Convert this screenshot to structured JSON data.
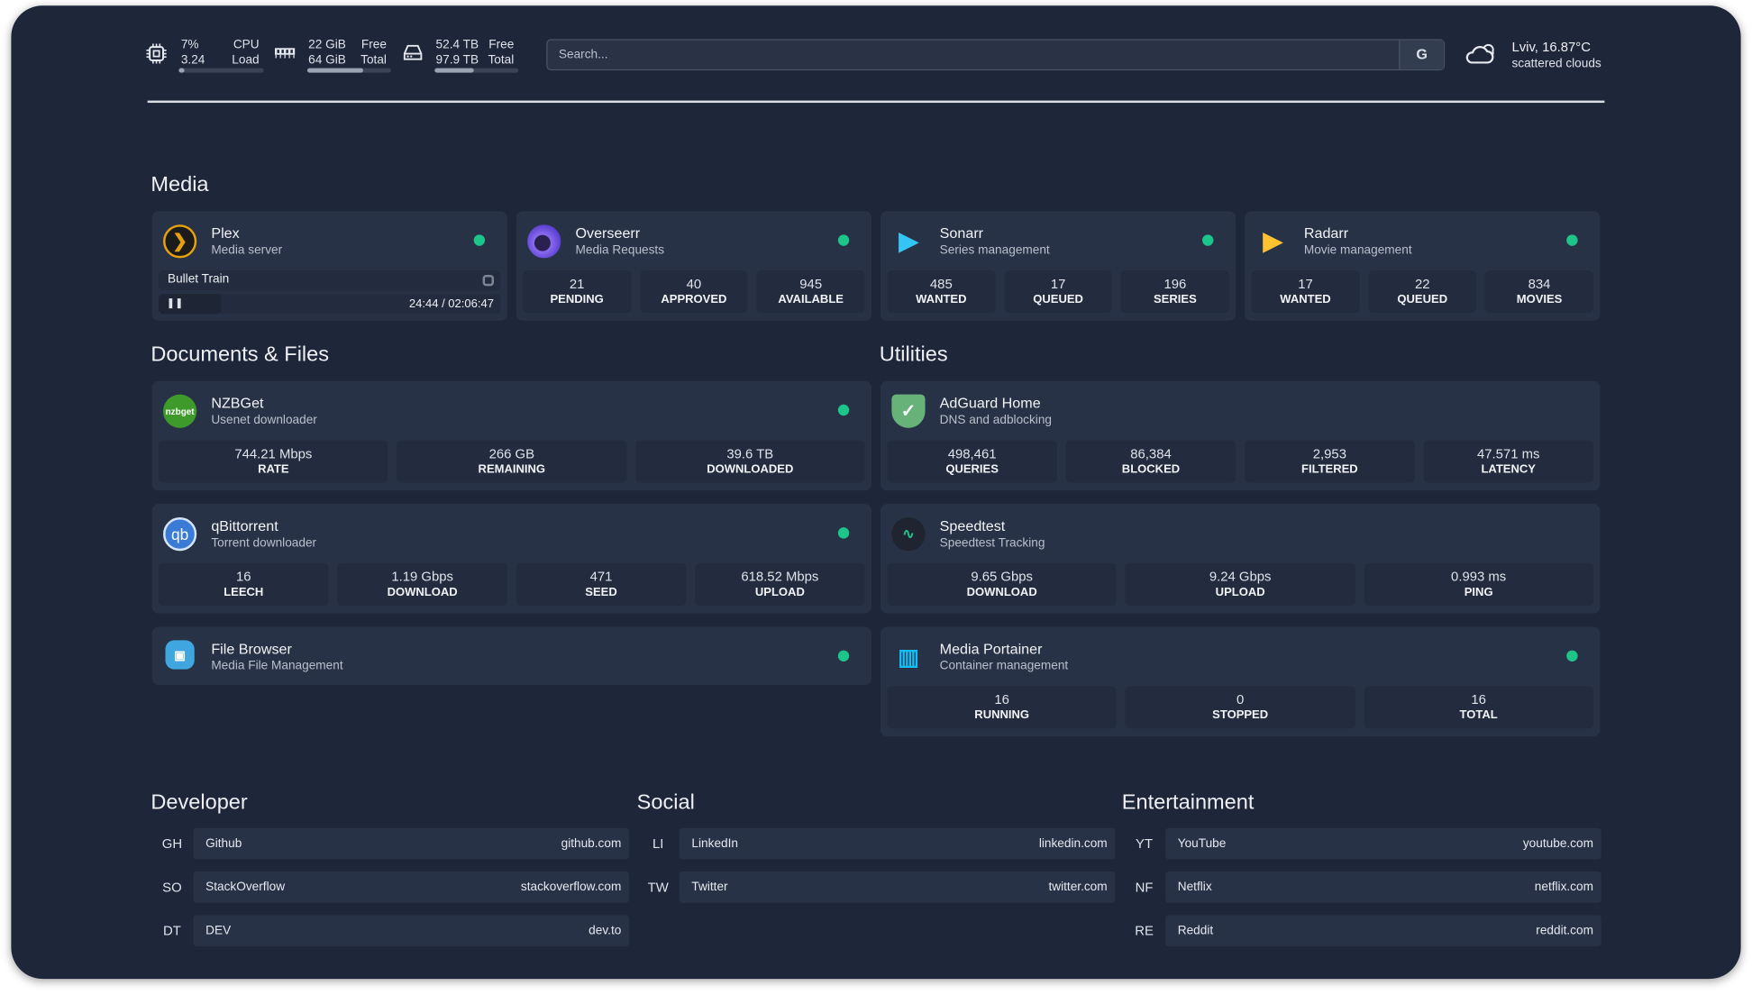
{
  "header": {
    "cpu": {
      "icon": "cpu-icon",
      "value1": "7%",
      "value2": "3.24",
      "label1": "CPU",
      "label2": "Load",
      "percent": 7
    },
    "memory": {
      "icon": "memory-icon",
      "value1": "22 GiB",
      "value2": "64 GiB",
      "label1": "Free",
      "label2": "Total",
      "percent": 66
    },
    "disk": {
      "icon": "disk-icon",
      "value1": "52.4 TB",
      "value2": "97.9 TB",
      "label1": "Free",
      "label2": "Total",
      "percent": 46
    },
    "search": {
      "placeholder": "Search...",
      "button_label": "G"
    },
    "weather": {
      "icon": "cloud-icon",
      "location_temp": "Lviv, 16.87°C",
      "condition": "scattered clouds"
    }
  },
  "colors": {
    "background": "#1e2639",
    "card": "#283246",
    "status_ok": "#1ec58a"
  },
  "sections": {
    "media": "Media",
    "documents": "Documents & Files",
    "utilities": "Utilities",
    "developer": "Developer",
    "social": "Social",
    "entertainment": "Entertainment"
  },
  "media": [
    {
      "name": "Plex",
      "desc": "Media server",
      "icon": "plex-icon",
      "status": "online",
      "now_playing": {
        "title": "Bullet Train",
        "time": "24:44 / 02:06:47",
        "state": "playing"
      }
    },
    {
      "name": "Overseerr",
      "desc": "Media Requests",
      "icon": "overseerr-icon",
      "status": "online",
      "stats": [
        {
          "v": "21",
          "l": "PENDING"
        },
        {
          "v": "40",
          "l": "APPROVED"
        },
        {
          "v": "945",
          "l": "AVAILABLE"
        }
      ]
    },
    {
      "name": "Sonarr",
      "desc": "Series management",
      "icon": "sonarr-icon",
      "status": "online",
      "stats": [
        {
          "v": "485",
          "l": "WANTED"
        },
        {
          "v": "17",
          "l": "QUEUED"
        },
        {
          "v": "196",
          "l": "SERIES"
        }
      ]
    },
    {
      "name": "Radarr",
      "desc": "Movie management",
      "icon": "radarr-icon",
      "status": "online",
      "stats": [
        {
          "v": "17",
          "l": "WANTED"
        },
        {
          "v": "22",
          "l": "QUEUED"
        },
        {
          "v": "834",
          "l": "MOVIES"
        }
      ]
    }
  ],
  "documents": [
    {
      "name": "NZBGet",
      "desc": "Usenet downloader",
      "icon": "nzbget-icon",
      "icon_text": "nzbget",
      "status": "online",
      "stats": [
        {
          "v": "744.21 Mbps",
          "l": "RATE"
        },
        {
          "v": "266 GB",
          "l": "REMAINING"
        },
        {
          "v": "39.6 TB",
          "l": "DOWNLOADED"
        }
      ]
    },
    {
      "name": "qBittorrent",
      "desc": "Torrent downloader",
      "icon": "qbittorrent-icon",
      "icon_text": "qb",
      "status": "online",
      "stats": [
        {
          "v": "16",
          "l": "LEECH"
        },
        {
          "v": "1.19 Gbps",
          "l": "DOWNLOAD"
        },
        {
          "v": "471",
          "l": "SEED"
        },
        {
          "v": "618.52 Mbps",
          "l": "UPLOAD"
        }
      ]
    },
    {
      "name": "File Browser",
      "desc": "Media File Management",
      "icon": "filebrowser-icon",
      "status": "online"
    }
  ],
  "utilities": [
    {
      "name": "AdGuard Home",
      "desc": "DNS and adblocking",
      "icon": "adguard-icon",
      "stats": [
        {
          "v": "498,461",
          "l": "QUERIES"
        },
        {
          "v": "86,384",
          "l": "BLOCKED"
        },
        {
          "v": "2,953",
          "l": "FILTERED"
        },
        {
          "v": "47.571 ms",
          "l": "LATENCY"
        }
      ]
    },
    {
      "name": "Speedtest",
      "desc": "Speedtest Tracking",
      "icon": "speedtest-icon",
      "stats": [
        {
          "v": "9.65 Gbps",
          "l": "DOWNLOAD"
        },
        {
          "v": "9.24 Gbps",
          "l": "UPLOAD"
        },
        {
          "v": "0.993 ms",
          "l": "PING"
        }
      ]
    },
    {
      "name": "Media Portainer",
      "desc": "Container management",
      "icon": "portainer-icon",
      "status": "online",
      "stats": [
        {
          "v": "16",
          "l": "RUNNING"
        },
        {
          "v": "0",
          "l": "STOPPED"
        },
        {
          "v": "16",
          "l": "TOTAL"
        }
      ]
    }
  ],
  "bookmarks": {
    "developer": [
      {
        "abbr": "GH",
        "name": "Github",
        "url": "github.com"
      },
      {
        "abbr": "SO",
        "name": "StackOverflow",
        "url": "stackoverflow.com"
      },
      {
        "abbr": "DT",
        "name": "DEV",
        "url": "dev.to"
      }
    ],
    "social": [
      {
        "abbr": "LI",
        "name": "LinkedIn",
        "url": "linkedin.com"
      },
      {
        "abbr": "TW",
        "name": "Twitter",
        "url": "twitter.com"
      }
    ],
    "entertainment": [
      {
        "abbr": "YT",
        "name": "YouTube",
        "url": "youtube.com"
      },
      {
        "abbr": "NF",
        "name": "Netflix",
        "url": "netflix.com"
      },
      {
        "abbr": "RE",
        "name": "Reddit",
        "url": "reddit.com"
      }
    ]
  }
}
